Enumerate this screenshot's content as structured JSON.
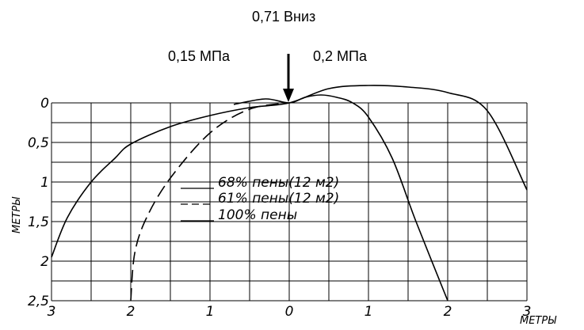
{
  "chart_data": {
    "type": "line",
    "annotations": {
      "force": "0,71 Вниз",
      "pressure_left": "0,15 МПа",
      "pressure_right": "0,2 МПа"
    },
    "xlabel": "МЕТРЫ",
    "ylabel": "МЕТРЫ",
    "xlim": [
      -3,
      3
    ],
    "ylim": [
      0,
      2.5
    ],
    "y_inverted": true,
    "grid": true,
    "x_ticks": [
      -3,
      -2,
      -1,
      0,
      1,
      2,
      3
    ],
    "x_tick_labels": [
      "3",
      "2",
      "1",
      "0",
      "1",
      "2",
      "3"
    ],
    "y_ticks": [
      0,
      0.5,
      1,
      1.5,
      2,
      2.5
    ],
    "y_tick_labels": [
      "0",
      "0,5",
      "1",
      "1,5",
      "2",
      "2,5"
    ],
    "series": [
      {
        "name": "68% пены(12 м2)",
        "style": "solid",
        "x": [
          -3,
          -2.8,
          -2.5,
          -2.2,
          -2.0,
          -1.5,
          -1.0,
          -0.5,
          0,
          0.5,
          1.0,
          1.5,
          2.0,
          2.5,
          3.0
        ],
        "y": [
          1.95,
          1.45,
          1.0,
          0.7,
          0.52,
          0.3,
          0.16,
          0.06,
          0.0,
          -0.18,
          -0.22,
          -0.2,
          -0.13,
          0.1,
          1.1
        ]
      },
      {
        "name": "61% пены(12 м2)",
        "style": "dashed",
        "x": [
          -2.0,
          -1.95,
          -1.8,
          -1.5,
          -1.0,
          -0.5,
          0
        ],
        "y": [
          2.5,
          1.9,
          1.45,
          0.95,
          0.38,
          0.08,
          0.0
        ]
      },
      {
        "name": "100% пены",
        "style": "solid",
        "x": [
          -0.7,
          -0.3,
          0,
          0.2,
          0.4,
          0.6,
          0.8,
          1.0,
          1.3,
          1.6,
          2.0
        ],
        "y": [
          0.02,
          -0.05,
          0.0,
          -0.07,
          -0.1,
          -0.07,
          0.0,
          0.18,
          0.7,
          1.5,
          2.5
        ]
      }
    ],
    "legend_placement": "center"
  }
}
